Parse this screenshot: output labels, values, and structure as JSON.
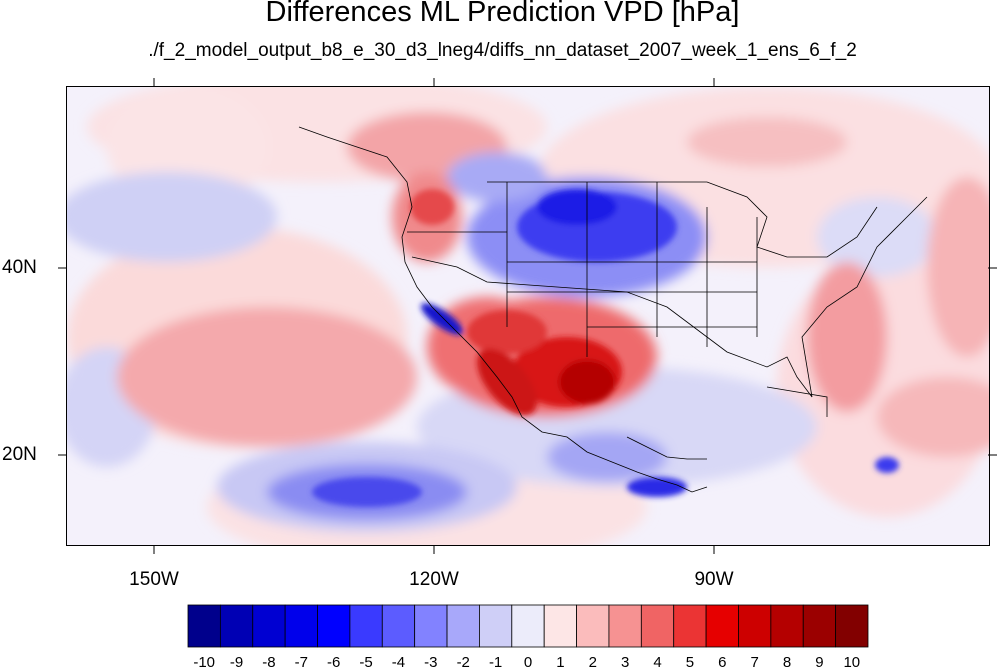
{
  "title": "Differences ML Prediction VPD [hPa]",
  "subtitle": "./f_2_model_output_b8_e_30_d3_lneg4/diffs_nn_dataset_2007_week_1_ens_6_f_2",
  "map": {
    "projection": "cylindrical equidistant",
    "region": "North America / Eastern Pacific",
    "lat_labels": [
      "40N",
      "20N"
    ],
    "lon_labels": [
      "150W",
      "120W",
      "90W"
    ],
    "features": [
      "coastlines",
      "us-state-borders",
      "country-borders"
    ],
    "colors": {
      "strong_negative": "#0000a8",
      "weak_negative": "#c6c6f4",
      "near_zero": "#f3f1fb",
      "weak_positive": "#f8c8c8",
      "strong_positive": "#c00000"
    }
  },
  "colorbar": {
    "labels": [
      "-10",
      "-9",
      "-8",
      "-7",
      "-6",
      "-5",
      "-4",
      "-3",
      "-2",
      "-1",
      "0",
      "1",
      "2",
      "3",
      "4",
      "5",
      "6",
      "7",
      "8",
      "9",
      "10"
    ],
    "colors": [
      "#00008c",
      "#0000b4",
      "#0000d2",
      "#0000eb",
      "#0000ff",
      "#3a3aff",
      "#5c5cff",
      "#8282ff",
      "#a8a8fa",
      "#cfcff7",
      "#ececfa",
      "#fde6e6",
      "#fbbcbc",
      "#f69292",
      "#f06464",
      "#eb3434",
      "#e60000",
      "#cd0000",
      "#b40000",
      "#9b0000",
      "#820000"
    ]
  }
}
